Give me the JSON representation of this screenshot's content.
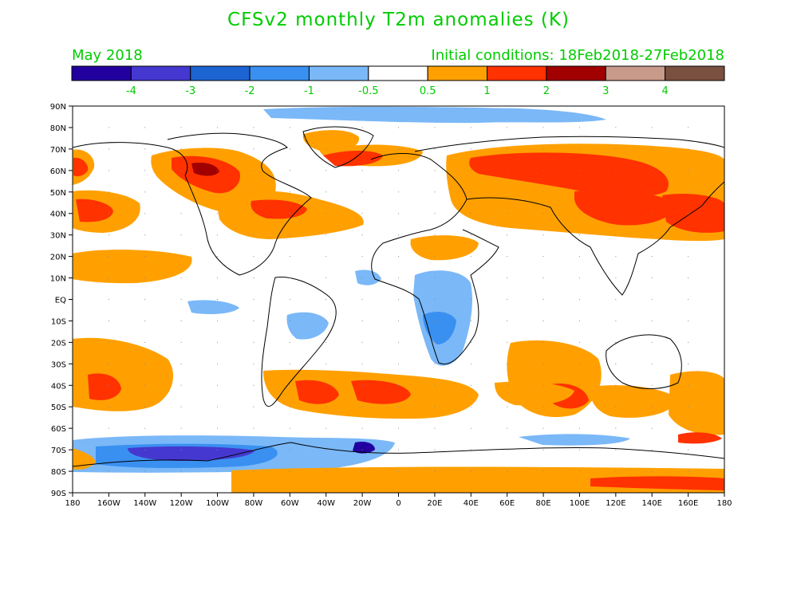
{
  "title": "CFSv2 monthly T2m anomalies (K)",
  "month": "May 2018",
  "initial_conditions": "Initial conditions: 18Feb2018-27Feb2018",
  "colorbar": {
    "colors": [
      "#2200a0",
      "#4538d0",
      "#1c64d2",
      "#3a90f0",
      "#7ab8f8",
      "#ffffff",
      "#ffa000",
      "#ff3200",
      "#a00000",
      "#c89a8a",
      "#7a5040"
    ],
    "labels": [
      "-4",
      "-3",
      "-2",
      "-1",
      "-0.5",
      "0.5",
      "1",
      "2",
      "3",
      "4"
    ]
  },
  "lat_labels": [
    "90N",
    "80N",
    "70N",
    "60N",
    "50N",
    "40N",
    "30N",
    "20N",
    "10N",
    "EQ",
    "10S",
    "20S",
    "30S",
    "40S",
    "50S",
    "60S",
    "70S",
    "80S",
    "90S"
  ],
  "lon_labels": [
    "180",
    "160W",
    "140W",
    "120W",
    "100W",
    "80W",
    "60W",
    "40W",
    "20W",
    "0",
    "20E",
    "40E",
    "60E",
    "80E",
    "100E",
    "120E",
    "140E",
    "160E",
    "180"
  ],
  "colors": {
    "text": "#00cc00",
    "orange": "#ffa000",
    "red": "#ff3200",
    "darkred": "#a00000",
    "blue": "#3a90f0",
    "lightblue": "#7ab8f8",
    "darkblue": "#4538d0",
    "navy": "#2200a0",
    "coast": "#000000"
  },
  "map_data": {
    "type": "contour-filled anomaly map",
    "variable": "2m temperature anomaly",
    "units": "K",
    "projection": "equirectangular",
    "lon_range": [
      -180,
      180
    ],
    "lat_range": [
      -90,
      90
    ]
  }
}
